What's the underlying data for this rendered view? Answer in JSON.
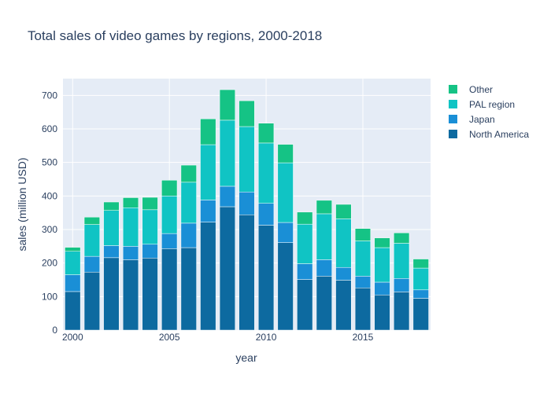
{
  "chart_data": {
    "type": "bar",
    "barmode": "stack",
    "title": "Total sales of video games by regions, 2000-2018",
    "xlabel": "year",
    "ylabel": "sales (million USD)",
    "x": [
      2000,
      2001,
      2002,
      2003,
      2004,
      2005,
      2006,
      2007,
      2008,
      2009,
      2010,
      2011,
      2012,
      2013,
      2014,
      2015,
      2016,
      2017,
      2018
    ],
    "x_ticks": [
      "2000",
      "2005",
      "2010",
      "2015"
    ],
    "y_ticks": [
      "0",
      "100",
      "200",
      "300",
      "400",
      "500",
      "600",
      "700"
    ],
    "ylim": [
      0,
      750
    ],
    "xlim": [
      1999.5,
      2018.5
    ],
    "grid": true,
    "legend_position": "top-right",
    "series": [
      {
        "name": "North America",
        "color": "#0d6aa0",
        "values": [
          115,
          173,
          216,
          210,
          215,
          243,
          246,
          322,
          368,
          344,
          313,
          261,
          151,
          161,
          149,
          126,
          105,
          114,
          95
        ]
      },
      {
        "name": "Japan",
        "color": "#1a8fd6",
        "values": [
          50,
          47,
          36,
          40,
          41,
          45,
          73,
          66,
          61,
          68,
          65,
          60,
          47,
          49,
          38,
          35,
          38,
          40,
          25
        ]
      },
      {
        "name": "PAL region",
        "color": "#10c4c4",
        "values": [
          70,
          95,
          105,
          115,
          103,
          112,
          122,
          165,
          197,
          195,
          180,
          178,
          118,
          137,
          145,
          105,
          103,
          105,
          65
        ]
      },
      {
        "name": "Other",
        "color": "#15c385",
        "values": [
          12,
          22,
          25,
          30,
          37,
          47,
          51,
          77,
          91,
          77,
          59,
          55,
          36,
          40,
          43,
          37,
          29,
          31,
          27
        ]
      }
    ]
  }
}
